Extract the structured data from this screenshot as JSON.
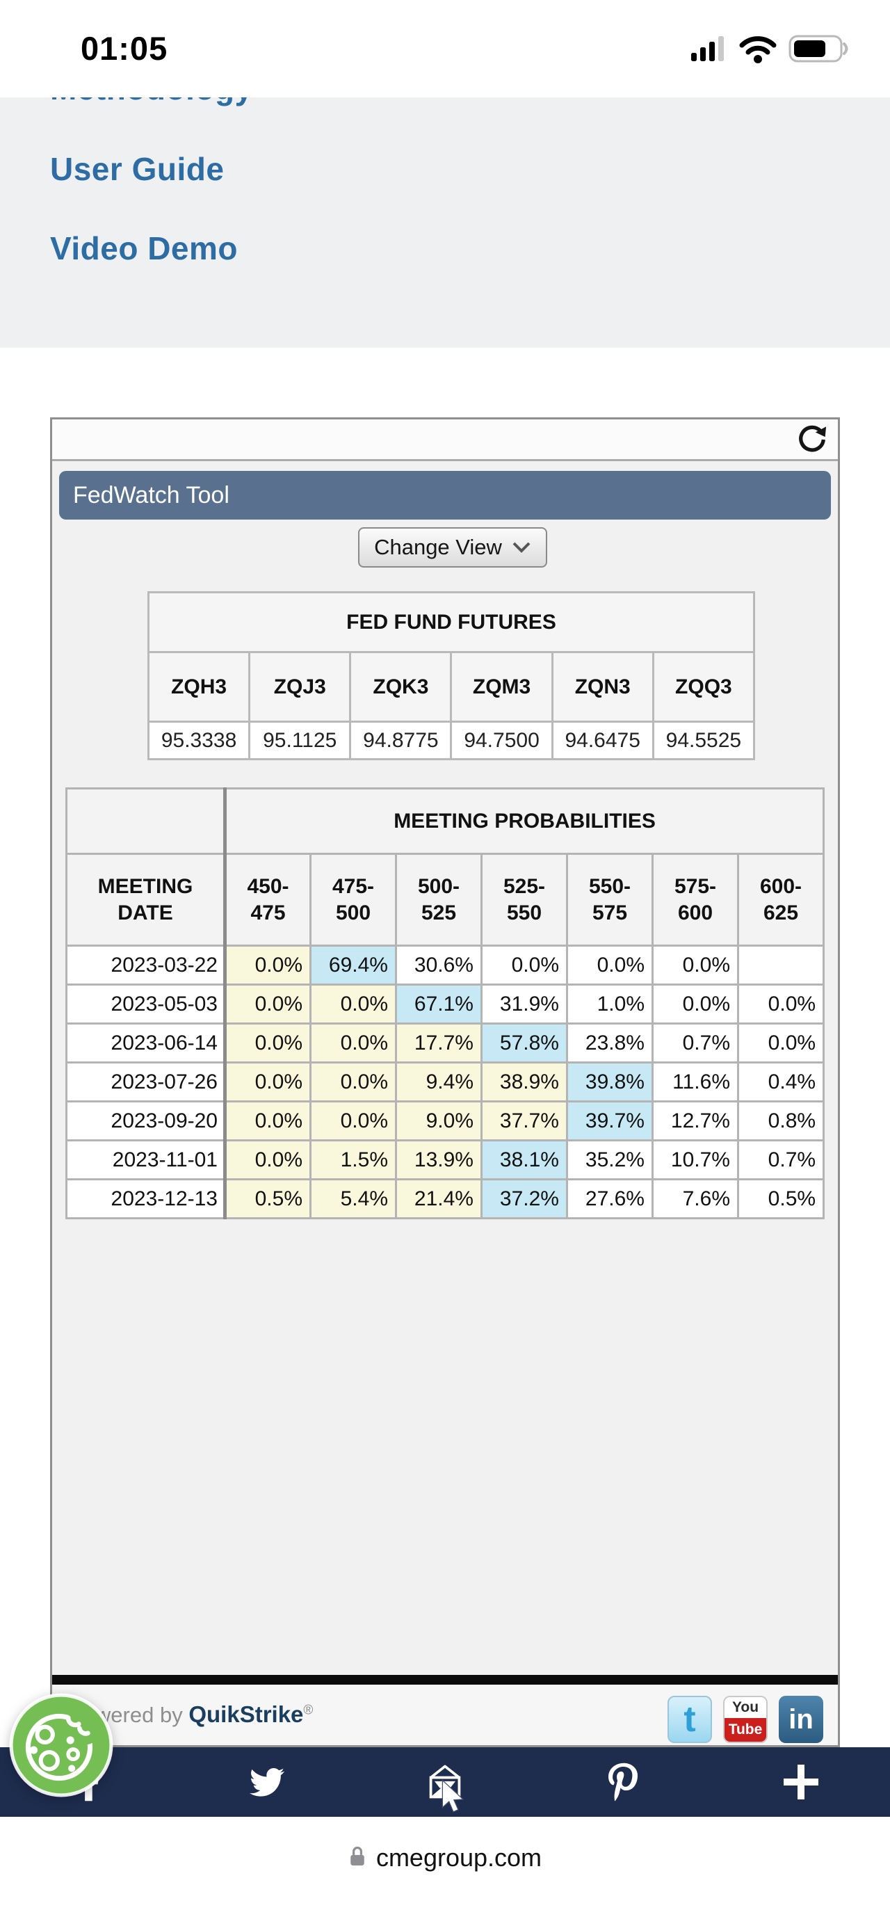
{
  "colors": {
    "accent_link": "#2E6CA4",
    "fedwatch_bar": "#59718F",
    "share_bar_bg": "#1E2C4E",
    "cell_yellow": "#FAF8DC",
    "cell_blue": "#C7E9F6",
    "cookie_green": "#74BE54",
    "youtube_red": "#CA1F1D"
  },
  "status_bar": {
    "time": "01:05"
  },
  "page_links": [
    {
      "label": "Methodology"
    },
    {
      "label": "User Guide"
    },
    {
      "label": "Video Demo"
    }
  ],
  "widget": {
    "title": "FedWatch Tool",
    "change_view": {
      "label": "Change View"
    },
    "futures": {
      "title": "FED FUND FUTURES",
      "columns": [
        "ZQH3",
        "ZQJ3",
        "ZQK3",
        "ZQM3",
        "ZQN3",
        "ZQQ3"
      ],
      "values": [
        "95.3338",
        "95.1125",
        "94.8775",
        "94.7500",
        "94.6475",
        "94.5525"
      ]
    },
    "probabilities": {
      "title": "MEETING PROBABILITIES",
      "date_header_line1": "MEETING",
      "date_header_line2": "DATE",
      "ranges": [
        "450-475",
        "475-500",
        "500-525",
        "525-550",
        "550-575",
        "575-600",
        "600-625"
      ],
      "rows": [
        {
          "date": "2023-03-22",
          "values": [
            "0.0%",
            "69.4%",
            "30.6%",
            "0.0%",
            "0.0%",
            "0.0%",
            ""
          ],
          "highlight": 1
        },
        {
          "date": "2023-05-03",
          "values": [
            "0.0%",
            "0.0%",
            "67.1%",
            "31.9%",
            "1.0%",
            "0.0%",
            "0.0%"
          ],
          "highlight": 2
        },
        {
          "date": "2023-06-14",
          "values": [
            "0.0%",
            "0.0%",
            "17.7%",
            "57.8%",
            "23.8%",
            "0.7%",
            "0.0%"
          ],
          "highlight": 3
        },
        {
          "date": "2023-07-26",
          "values": [
            "0.0%",
            "0.0%",
            "9.4%",
            "38.9%",
            "39.8%",
            "11.6%",
            "0.4%"
          ],
          "highlight": 4
        },
        {
          "date": "2023-09-20",
          "values": [
            "0.0%",
            "0.0%",
            "9.0%",
            "37.7%",
            "39.7%",
            "12.7%",
            "0.8%"
          ],
          "highlight": 4
        },
        {
          "date": "2023-11-01",
          "values": [
            "0.0%",
            "1.5%",
            "13.9%",
            "38.1%",
            "35.2%",
            "10.7%",
            "0.7%"
          ],
          "highlight": 3
        },
        {
          "date": "2023-12-13",
          "values": [
            "0.5%",
            "5.4%",
            "21.4%",
            "37.2%",
            "27.6%",
            "7.6%",
            "0.5%"
          ],
          "highlight": 3
        }
      ]
    },
    "footer": {
      "powered_by": "Powered by",
      "brand": "QuikStrike",
      "registered": "®",
      "twitter_glyph": "t",
      "youtube_text_top": "You",
      "youtube_text_bottom": "Tube",
      "linkedin_text": "in"
    }
  },
  "share_bar": {
    "icons": [
      "facebook-icon",
      "twitter-icon",
      "email-icon",
      "pinterest-icon",
      "add-icon"
    ]
  },
  "url_bar": {
    "domain": "cmegroup.com"
  }
}
